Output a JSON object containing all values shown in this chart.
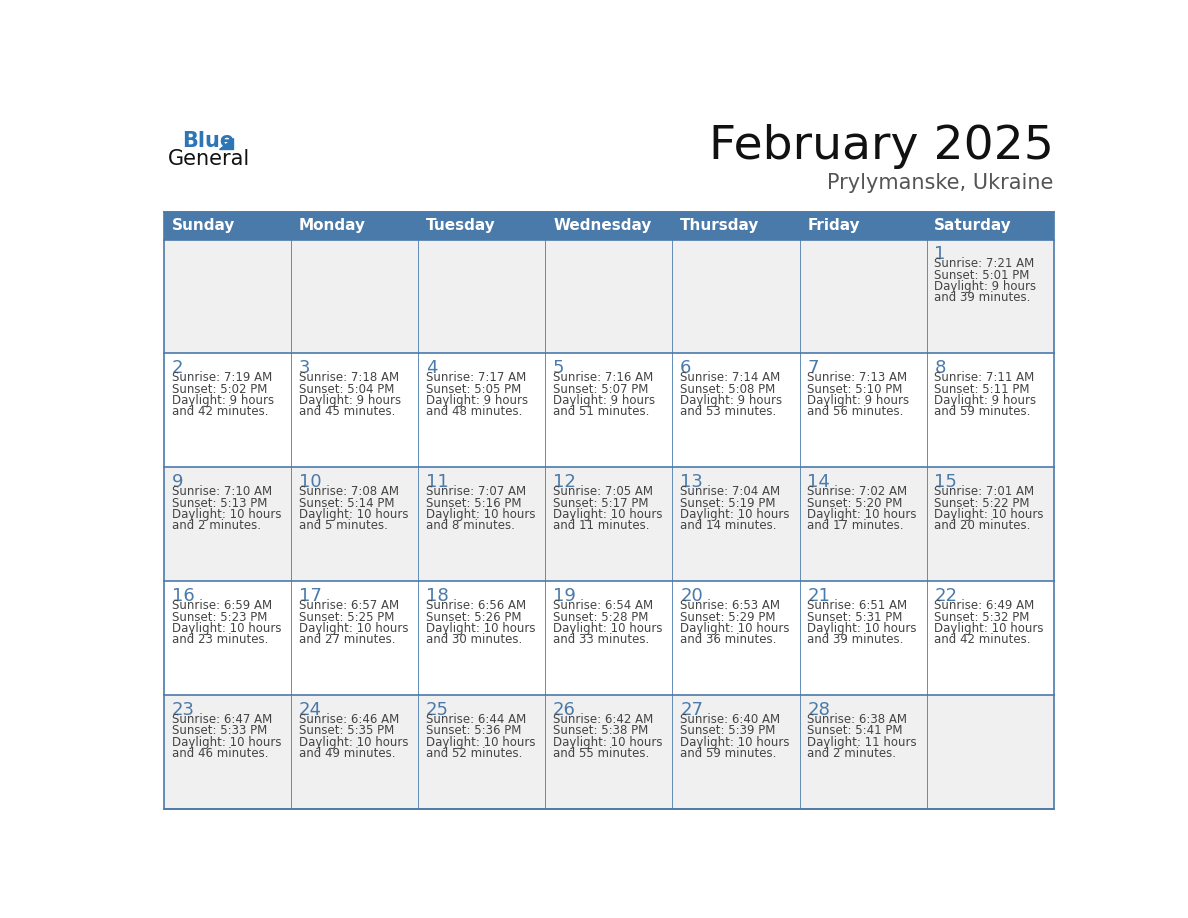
{
  "title": "February 2025",
  "subtitle": "Prylymanske, Ukraine",
  "header_bg": "#4a7aaa",
  "header_text_color": "#ffffff",
  "day_headers": [
    "Sunday",
    "Monday",
    "Tuesday",
    "Wednesday",
    "Thursday",
    "Friday",
    "Saturday"
  ],
  "cell_bg_light": "#f0f0f0",
  "cell_bg_white": "#ffffff",
  "border_color": "#4a7aaa",
  "text_color": "#444444",
  "number_color": "#4a7aaa",
  "calendar_data": [
    [
      null,
      null,
      null,
      null,
      null,
      null,
      {
        "day": 1,
        "sunrise": "7:21 AM",
        "sunset": "5:01 PM",
        "daylight_line1": "Daylight: 9 hours",
        "daylight_line2": "and 39 minutes."
      }
    ],
    [
      {
        "day": 2,
        "sunrise": "7:19 AM",
        "sunset": "5:02 PM",
        "daylight_line1": "Daylight: 9 hours",
        "daylight_line2": "and 42 minutes."
      },
      {
        "day": 3,
        "sunrise": "7:18 AM",
        "sunset": "5:04 PM",
        "daylight_line1": "Daylight: 9 hours",
        "daylight_line2": "and 45 minutes."
      },
      {
        "day": 4,
        "sunrise": "7:17 AM",
        "sunset": "5:05 PM",
        "daylight_line1": "Daylight: 9 hours",
        "daylight_line2": "and 48 minutes."
      },
      {
        "day": 5,
        "sunrise": "7:16 AM",
        "sunset": "5:07 PM",
        "daylight_line1": "Daylight: 9 hours",
        "daylight_line2": "and 51 minutes."
      },
      {
        "day": 6,
        "sunrise": "7:14 AM",
        "sunset": "5:08 PM",
        "daylight_line1": "Daylight: 9 hours",
        "daylight_line2": "and 53 minutes."
      },
      {
        "day": 7,
        "sunrise": "7:13 AM",
        "sunset": "5:10 PM",
        "daylight_line1": "Daylight: 9 hours",
        "daylight_line2": "and 56 minutes."
      },
      {
        "day": 8,
        "sunrise": "7:11 AM",
        "sunset": "5:11 PM",
        "daylight_line1": "Daylight: 9 hours",
        "daylight_line2": "and 59 minutes."
      }
    ],
    [
      {
        "day": 9,
        "sunrise": "7:10 AM",
        "sunset": "5:13 PM",
        "daylight_line1": "Daylight: 10 hours",
        "daylight_line2": "and 2 minutes."
      },
      {
        "day": 10,
        "sunrise": "7:08 AM",
        "sunset": "5:14 PM",
        "daylight_line1": "Daylight: 10 hours",
        "daylight_line2": "and 5 minutes."
      },
      {
        "day": 11,
        "sunrise": "7:07 AM",
        "sunset": "5:16 PM",
        "daylight_line1": "Daylight: 10 hours",
        "daylight_line2": "and 8 minutes."
      },
      {
        "day": 12,
        "sunrise": "7:05 AM",
        "sunset": "5:17 PM",
        "daylight_line1": "Daylight: 10 hours",
        "daylight_line2": "and 11 minutes."
      },
      {
        "day": 13,
        "sunrise": "7:04 AM",
        "sunset": "5:19 PM",
        "daylight_line1": "Daylight: 10 hours",
        "daylight_line2": "and 14 minutes."
      },
      {
        "day": 14,
        "sunrise": "7:02 AM",
        "sunset": "5:20 PM",
        "daylight_line1": "Daylight: 10 hours",
        "daylight_line2": "and 17 minutes."
      },
      {
        "day": 15,
        "sunrise": "7:01 AM",
        "sunset": "5:22 PM",
        "daylight_line1": "Daylight: 10 hours",
        "daylight_line2": "and 20 minutes."
      }
    ],
    [
      {
        "day": 16,
        "sunrise": "6:59 AM",
        "sunset": "5:23 PM",
        "daylight_line1": "Daylight: 10 hours",
        "daylight_line2": "and 23 minutes."
      },
      {
        "day": 17,
        "sunrise": "6:57 AM",
        "sunset": "5:25 PM",
        "daylight_line1": "Daylight: 10 hours",
        "daylight_line2": "and 27 minutes."
      },
      {
        "day": 18,
        "sunrise": "6:56 AM",
        "sunset": "5:26 PM",
        "daylight_line1": "Daylight: 10 hours",
        "daylight_line2": "and 30 minutes."
      },
      {
        "day": 19,
        "sunrise": "6:54 AM",
        "sunset": "5:28 PM",
        "daylight_line1": "Daylight: 10 hours",
        "daylight_line2": "and 33 minutes."
      },
      {
        "day": 20,
        "sunrise": "6:53 AM",
        "sunset": "5:29 PM",
        "daylight_line1": "Daylight: 10 hours",
        "daylight_line2": "and 36 minutes."
      },
      {
        "day": 21,
        "sunrise": "6:51 AM",
        "sunset": "5:31 PM",
        "daylight_line1": "Daylight: 10 hours",
        "daylight_line2": "and 39 minutes."
      },
      {
        "day": 22,
        "sunrise": "6:49 AM",
        "sunset": "5:32 PM",
        "daylight_line1": "Daylight: 10 hours",
        "daylight_line2": "and 42 minutes."
      }
    ],
    [
      {
        "day": 23,
        "sunrise": "6:47 AM",
        "sunset": "5:33 PM",
        "daylight_line1": "Daylight: 10 hours",
        "daylight_line2": "and 46 minutes."
      },
      {
        "day": 24,
        "sunrise": "6:46 AM",
        "sunset": "5:35 PM",
        "daylight_line1": "Daylight: 10 hours",
        "daylight_line2": "and 49 minutes."
      },
      {
        "day": 25,
        "sunrise": "6:44 AM",
        "sunset": "5:36 PM",
        "daylight_line1": "Daylight: 10 hours",
        "daylight_line2": "and 52 minutes."
      },
      {
        "day": 26,
        "sunrise": "6:42 AM",
        "sunset": "5:38 PM",
        "daylight_line1": "Daylight: 10 hours",
        "daylight_line2": "and 55 minutes."
      },
      {
        "day": 27,
        "sunrise": "6:40 AM",
        "sunset": "5:39 PM",
        "daylight_line1": "Daylight: 10 hours",
        "daylight_line2": "and 59 minutes."
      },
      {
        "day": 28,
        "sunrise": "6:38 AM",
        "sunset": "5:41 PM",
        "daylight_line1": "Daylight: 11 hours",
        "daylight_line2": "and 2 minutes."
      },
      null
    ]
  ],
  "logo_text_general": "General",
  "logo_text_blue": "Blue",
  "title_fontsize": 34,
  "subtitle_fontsize": 15,
  "header_fontsize": 11,
  "day_number_fontsize": 13,
  "cell_text_fontsize": 8.5
}
